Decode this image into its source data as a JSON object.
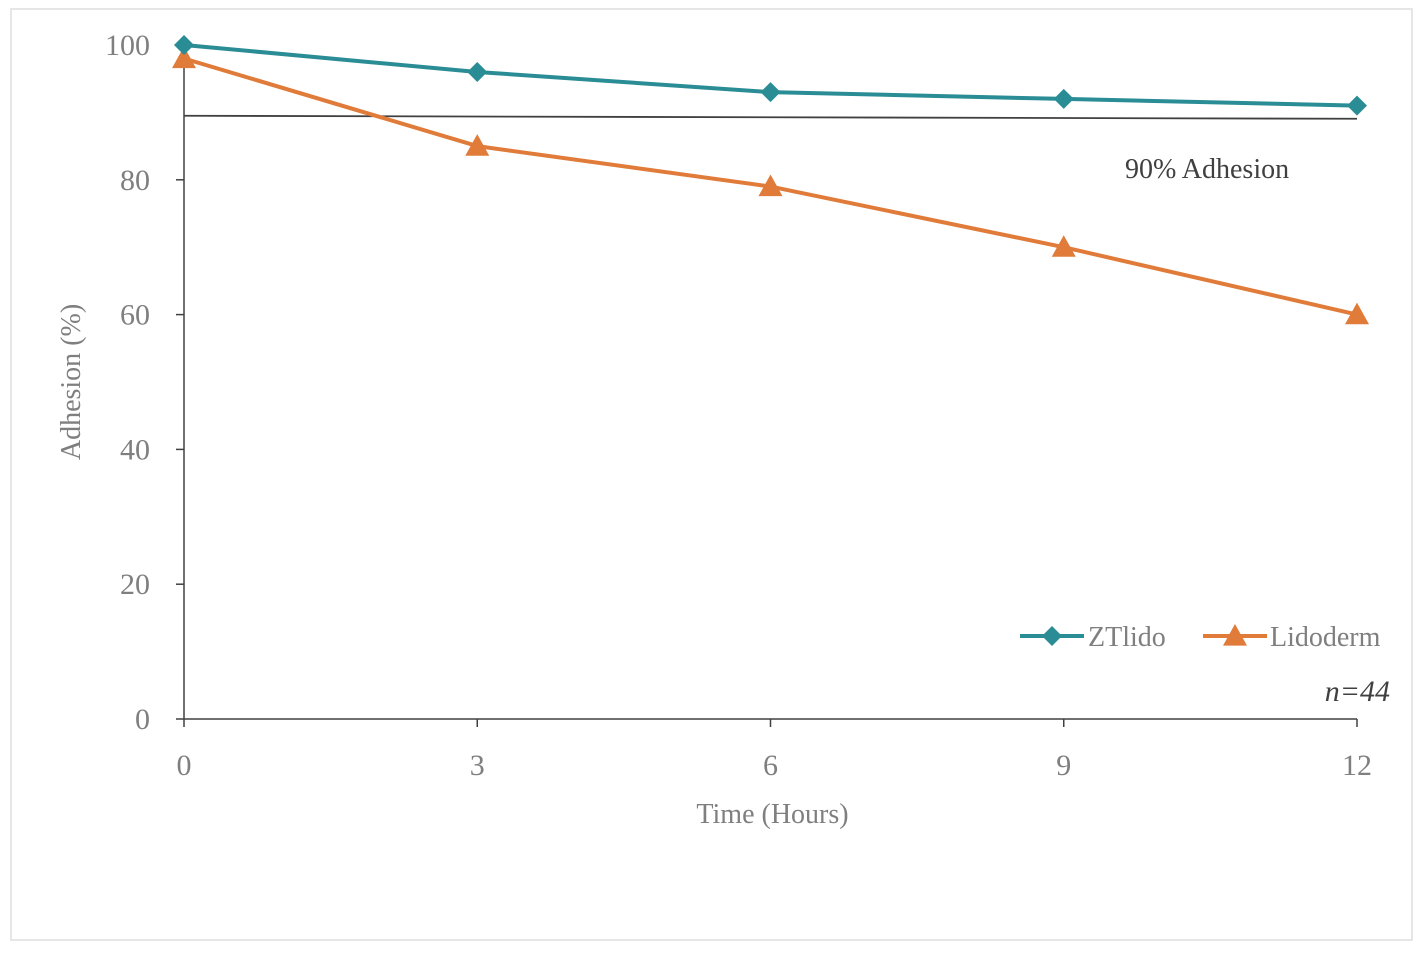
{
  "chart_data": {
    "type": "line",
    "x": [
      0,
      3,
      6,
      9,
      12
    ],
    "xlabel": "Time (Hours)",
    "ylabel": "Adhesion (%)",
    "xlim": [
      0,
      12
    ],
    "ylim": [
      0,
      100
    ],
    "xticks": [
      "0",
      "3",
      "6",
      "9",
      "12"
    ],
    "yticks": [
      "0",
      "20",
      "40",
      "60",
      "80",
      "100"
    ],
    "series": [
      {
        "name": "ZTlido",
        "values": [
          100,
          96,
          93,
          92,
          91
        ],
        "color": "#2a8c94",
        "marker": "diamond"
      },
      {
        "name": "Lidoderm",
        "values": [
          98,
          85,
          79,
          70,
          60
        ],
        "color": "#e07b39",
        "marker": "triangle"
      }
    ],
    "reference_line": {
      "y": 89.5,
      "label": "90% Adhesion",
      "color": "#404040"
    },
    "annotation": "n=44",
    "grid": false,
    "legend_position": "bottom-right"
  }
}
